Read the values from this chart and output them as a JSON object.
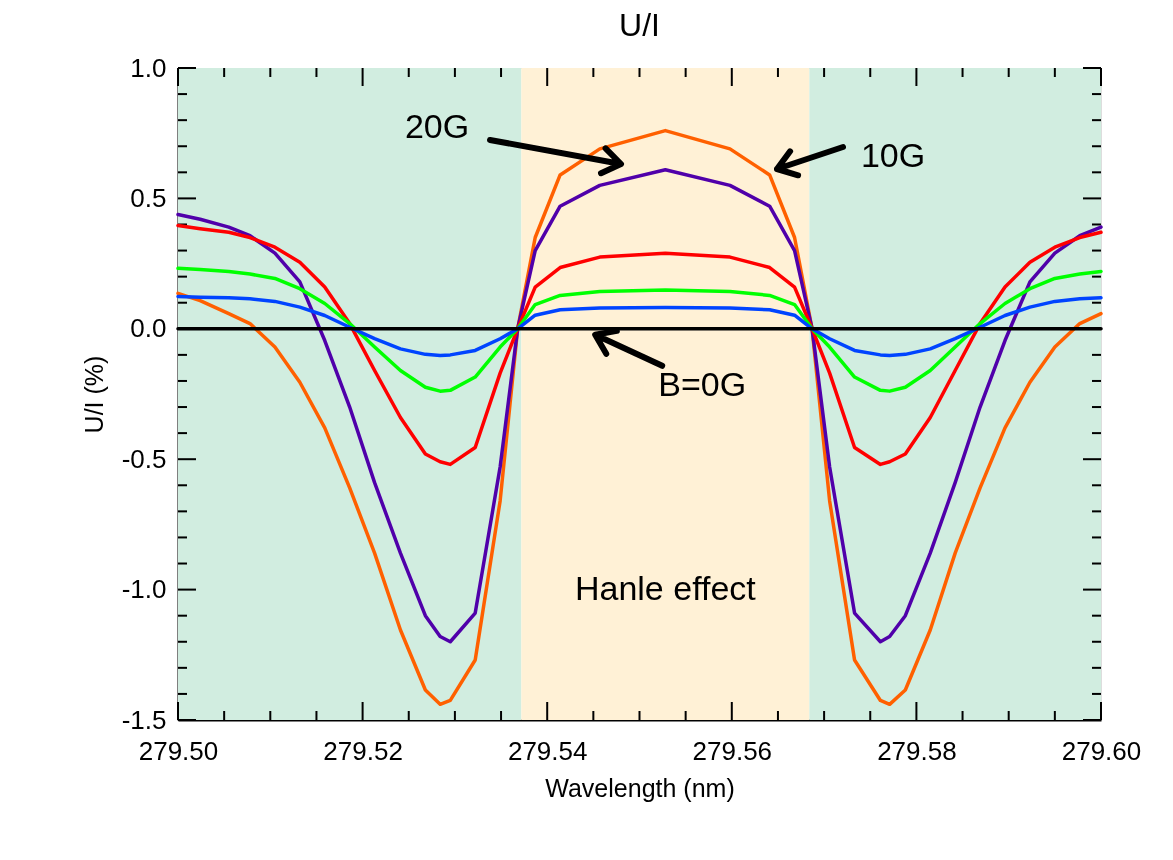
{
  "chart_data": {
    "type": "line",
    "title": "U/I",
    "xlabel": "Wavelength (nm)",
    "ylabel": "U/I (%)",
    "x": [
      279.5,
      279.5024,
      279.5055,
      279.5078,
      279.5105,
      279.5132,
      279.5159,
      279.5186,
      279.5213,
      279.5241,
      279.5268,
      279.5284,
      279.5295,
      279.5322,
      279.5349,
      279.5368,
      279.5387,
      279.5414,
      279.5457,
      279.5528,
      279.5598,
      279.5641,
      279.5668,
      279.5687,
      279.5706,
      279.5733,
      279.5761,
      279.5771,
      279.5788,
      279.5815,
      279.5842,
      279.5869,
      279.5896,
      279.5923,
      279.595,
      279.5977,
      279.6
    ],
    "series": [
      {
        "color": "#ff6000",
        "values": [
          0.136,
          0.108,
          0.058,
          0.02,
          -0.07,
          -0.205,
          -0.38,
          -0.61,
          -0.86,
          -1.155,
          -1.385,
          -1.44,
          -1.425,
          -1.27,
          -0.66,
          0.0,
          0.35,
          0.59,
          0.69,
          0.76,
          0.69,
          0.59,
          0.35,
          0.0,
          -0.66,
          -1.27,
          -1.425,
          -1.44,
          -1.385,
          -1.155,
          -0.86,
          -0.61,
          -0.38,
          -0.205,
          -0.07,
          0.02,
          0.058
        ]
      },
      {
        "color": "#5000aa",
        "values": [
          0.438,
          0.42,
          0.39,
          0.357,
          0.29,
          0.18,
          -0.045,
          -0.3,
          -0.59,
          -0.86,
          -1.1,
          -1.18,
          -1.2,
          -1.09,
          -0.53,
          0.0,
          0.3,
          0.47,
          0.55,
          0.61,
          0.55,
          0.47,
          0.3,
          0.0,
          -0.53,
          -1.09,
          -1.2,
          -1.18,
          -1.1,
          -0.86,
          -0.59,
          -0.3,
          -0.045,
          0.18,
          0.29,
          0.357,
          0.39
        ]
      },
      {
        "color": "#ff0000",
        "values": [
          0.396,
          0.384,
          0.37,
          0.35,
          0.313,
          0.255,
          0.16,
          0.02,
          -0.16,
          -0.34,
          -0.48,
          -0.51,
          -0.52,
          -0.455,
          -0.17,
          0.0,
          0.16,
          0.235,
          0.275,
          0.29,
          0.275,
          0.235,
          0.16,
          0.0,
          -0.17,
          -0.455,
          -0.52,
          -0.51,
          -0.48,
          -0.34,
          -0.16,
          0.02,
          0.16,
          0.255,
          0.313,
          0.35,
          0.37
        ]
      },
      {
        "color": "#00ff00",
        "values": [
          0.232,
          0.227,
          0.22,
          0.21,
          0.193,
          0.154,
          0.097,
          0.02,
          -0.07,
          -0.16,
          -0.224,
          -0.239,
          -0.236,
          -0.185,
          -0.07,
          0.0,
          0.093,
          0.128,
          0.143,
          0.149,
          0.143,
          0.128,
          0.093,
          0.0,
          -0.07,
          -0.185,
          -0.236,
          -0.239,
          -0.224,
          -0.16,
          -0.07,
          0.02,
          0.097,
          0.154,
          0.193,
          0.21,
          0.22
        ]
      },
      {
        "color": "#0044ff",
        "values": [
          0.124,
          0.121,
          0.119,
          0.115,
          0.105,
          0.083,
          0.051,
          0.006,
          -0.038,
          -0.077,
          -0.098,
          -0.102,
          -0.1,
          -0.083,
          -0.038,
          0.0,
          0.052,
          0.073,
          0.08,
          0.082,
          0.08,
          0.073,
          0.052,
          0.0,
          -0.038,
          -0.083,
          -0.1,
          -0.102,
          -0.098,
          -0.077,
          -0.038,
          0.006,
          0.051,
          0.083,
          0.105,
          0.115,
          0.119
        ]
      },
      {
        "color": "#000000",
        "x": [
          279.5,
          279.6
        ],
        "values": [
          0,
          0
        ]
      }
    ],
    "bands": [
      {
        "axis": "x",
        "from": 279.5,
        "to": 279.5372,
        "color": "#d1ede0"
      },
      {
        "axis": "x",
        "from": 279.5372,
        "to": 279.5684,
        "color": "#fff1d6",
        "label": "Hanle effect"
      },
      {
        "axis": "x",
        "from": 279.5684,
        "to": 279.6,
        "color": "#d1ede0"
      }
    ],
    "annotations": [
      "20G",
      "10G",
      {
        "text": "B=0G",
        "x": 279.5452,
        "y": 0
      }
    ],
    "xlim": [
      279.5,
      279.6
    ],
    "xticks": [
      {
        "value": 279.5,
        "label": "279.50"
      },
      {
        "value": 279.505,
        "label": null
      },
      {
        "value": 279.51,
        "label": null
      },
      {
        "value": 279.515,
        "label": null
      },
      {
        "value": 279.52,
        "label": "279.52"
      },
      {
        "value": 279.525,
        "label": null
      },
      {
        "value": 279.53,
        "label": null
      },
      {
        "value": 279.535,
        "label": null
      },
      {
        "value": 279.54,
        "label": "279.54"
      },
      {
        "value": 279.545,
        "label": null
      },
      {
        "value": 279.55,
        "label": null
      },
      {
        "value": 279.555,
        "label": null
      },
      {
        "value": 279.56,
        "label": "279.56"
      },
      {
        "value": 279.565,
        "label": null
      },
      {
        "value": 279.57,
        "label": null
      },
      {
        "value": 279.575,
        "label": null
      },
      {
        "value": 279.58,
        "label": "279.58"
      },
      {
        "value": 279.585,
        "label": null
      },
      {
        "value": 279.59,
        "label": null
      },
      {
        "value": 279.595,
        "label": null
      },
      {
        "value": 279.6,
        "label": "279.60"
      }
    ],
    "ylim": [
      -1.5,
      1.0
    ],
    "yticks": [
      {
        "value": -1.5,
        "label": "-1.5"
      },
      {
        "value": -1.4,
        "label": null
      },
      {
        "value": -1.3,
        "label": null
      },
      {
        "value": -1.2,
        "label": null
      },
      {
        "value": -1.1,
        "label": null
      },
      {
        "value": -1.0,
        "label": "-1.0"
      },
      {
        "value": -0.9,
        "label": null
      },
      {
        "value": -0.8,
        "label": null
      },
      {
        "value": -0.7,
        "label": null
      },
      {
        "value": -0.6,
        "label": null
      },
      {
        "value": -0.5,
        "label": "-0.5"
      },
      {
        "value": -0.4,
        "label": null
      },
      {
        "value": -0.3,
        "label": null
      },
      {
        "value": -0.2,
        "label": null
      },
      {
        "value": -0.1,
        "label": null
      },
      {
        "value": 0.0,
        "label": "0.0"
      },
      {
        "value": 0.1,
        "label": null
      },
      {
        "value": 0.2,
        "label": null
      },
      {
        "value": 0.3,
        "label": null
      },
      {
        "value": 0.4,
        "label": null
      },
      {
        "value": 0.5,
        "label": "0.5"
      },
      {
        "value": 0.6,
        "label": null
      },
      {
        "value": 0.7,
        "label": null
      },
      {
        "value": 0.8,
        "label": null
      },
      {
        "value": 0.9,
        "label": null
      },
      {
        "value": 1.0,
        "label": "1.0"
      }
    ],
    "grid": false,
    "marker": "none",
    "line_style": "solid"
  }
}
